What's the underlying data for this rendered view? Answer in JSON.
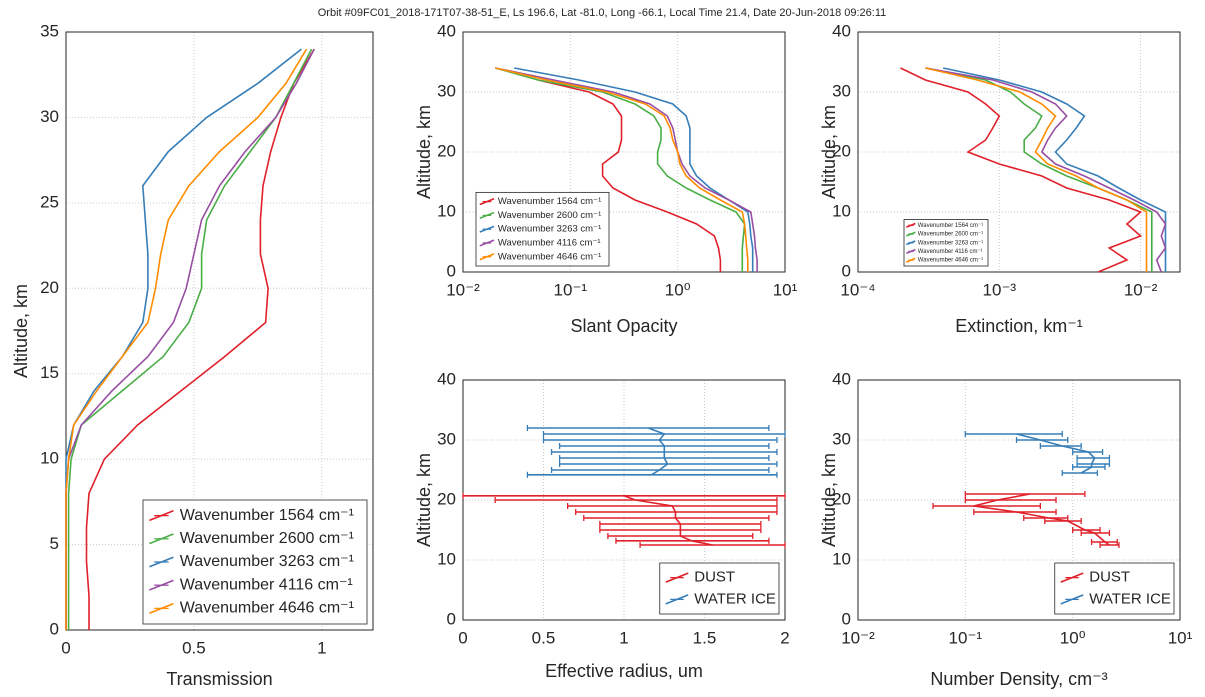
{
  "title": "Orbit #09FC01_2018-171T07-38-51_E, Ls 196.6, Lat -81.0, Long -66.1, Local Time 21.4, Date 20-Jun-2018 09:26:11",
  "chart_data": [
    {
      "type": "line",
      "xlabel": "Transmission",
      "ylabel": "Altitude, km",
      "xscale": "linear",
      "xlim": [
        0,
        1.2
      ],
      "xticks": [
        0,
        0.5,
        1
      ],
      "ylim": [
        0,
        35
      ],
      "yticks": [
        0,
        5,
        10,
        15,
        20,
        25,
        30,
        35
      ],
      "grid": true,
      "legend": "southeast",
      "altitude": [
        0,
        2,
        4,
        6,
        8,
        10,
        12,
        14,
        16,
        18,
        20,
        22,
        24,
        26,
        28,
        30,
        32,
        34
      ],
      "series": [
        {
          "name": "Wavenumber 1564 cm⁻¹",
          "color": "#e0202a",
          "values": [
            0.09,
            0.09,
            0.08,
            0.08,
            0.09,
            0.15,
            0.28,
            0.45,
            0.62,
            0.78,
            0.79,
            0.76,
            0.76,
            0.77,
            0.8,
            0.84,
            0.89,
            0.97
          ]
        },
        {
          "name": "Wavenumber 2600 cm⁻¹",
          "color": "#4aae48",
          "values": [
            0.01,
            0.01,
            0.01,
            0.01,
            0.01,
            0.02,
            0.06,
            0.22,
            0.38,
            0.48,
            0.53,
            0.53,
            0.55,
            0.62,
            0.72,
            0.82,
            0.89,
            0.96
          ]
        },
        {
          "name": "Wavenumber 3263 cm⁻¹",
          "color": "#377eb8",
          "values": [
            0,
            0,
            0,
            0,
            0,
            0,
            0.03,
            0.11,
            0.22,
            0.3,
            0.32,
            0.32,
            0.31,
            0.3,
            0.4,
            0.55,
            0.75,
            0.92
          ]
        },
        {
          "name": "Wavenumber 4116 cm⁻¹",
          "color": "#984ea3",
          "values": [
            0,
            0,
            0,
            0,
            0,
            0.01,
            0.06,
            0.18,
            0.32,
            0.42,
            0.47,
            0.5,
            0.53,
            0.6,
            0.7,
            0.82,
            0.9,
            0.97
          ]
        },
        {
          "name": "Wavenumber 4646 cm⁻¹",
          "color": "#ff8c00",
          "values": [
            0,
            0,
            0,
            0,
            0,
            0.01,
            0.03,
            0.12,
            0.22,
            0.32,
            0.35,
            0.37,
            0.4,
            0.48,
            0.6,
            0.75,
            0.86,
            0.94
          ]
        }
      ]
    },
    {
      "type": "line",
      "xlabel": "Slant Opacity",
      "ylabel": "Altitude, km",
      "xscale": "log",
      "xlim": [
        0.01,
        10
      ],
      "xticks": [
        {
          "value": 0.01,
          "label": "10⁻²"
        },
        {
          "value": 0.1,
          "label": "10⁻¹"
        },
        {
          "value": 1,
          "label": "10⁰"
        },
        {
          "value": 10,
          "label": "10¹"
        }
      ],
      "ylim": [
        0,
        40
      ],
      "yticks": [
        0,
        10,
        20,
        30,
        40
      ],
      "grid": true,
      "legend": "southwest",
      "altitude": [
        0,
        2,
        4,
        6,
        8,
        10,
        12,
        14,
        16,
        18,
        20,
        22,
        24,
        26,
        28,
        30,
        32,
        34
      ],
      "series": [
        {
          "name": "Wavenumber 1564 cm⁻¹",
          "color": "#e0202a",
          "values": [
            2.5,
            2.5,
            2.4,
            2.2,
            1.5,
            0.8,
            0.4,
            0.25,
            0.2,
            0.2,
            0.28,
            0.3,
            0.3,
            0.3,
            0.25,
            0.15,
            0.05,
            null
          ]
        },
        {
          "name": "Wavenumber 2600 cm⁻¹",
          "color": "#4aae48",
          "values": [
            4,
            4,
            4,
            4.1,
            4.2,
            3.5,
            2,
            1.2,
            0.8,
            0.65,
            0.65,
            0.7,
            0.7,
            0.6,
            0.4,
            0.2,
            0.05,
            0.02
          ]
        },
        {
          "name": "Wavenumber 3263 cm⁻¹",
          "color": "#377eb8",
          "values": [
            5,
            5,
            5,
            4.8,
            4.7,
            4.5,
            3,
            2,
            1.5,
            1.3,
            1.3,
            1.3,
            1.3,
            1.2,
            0.9,
            0.4,
            0.12,
            0.03
          ]
        },
        {
          "name": "Wavenumber 4116 cm⁻¹",
          "color": "#984ea3",
          "values": [
            5.5,
            5.5,
            5.3,
            5.2,
            5,
            4.8,
            3,
            1.8,
            1.3,
            1.1,
            1,
            0.95,
            0.9,
            0.8,
            0.55,
            0.25,
            0.07,
            0.02
          ]
        },
        {
          "name": "Wavenumber 4646 cm⁻¹",
          "color": "#ff8c00",
          "values": [
            4.5,
            4.5,
            4.4,
            4.3,
            4.2,
            4,
            2.5,
            1.6,
            1.2,
            1.05,
            1,
            0.9,
            0.85,
            0.75,
            0.5,
            0.22,
            0.06,
            0.02
          ]
        }
      ]
    },
    {
      "type": "line",
      "xlabel": "Extinction, km⁻¹",
      "ylabel": "Altitude, km",
      "xscale": "log",
      "xlim": [
        0.0001,
        0.019
      ],
      "xticks": [
        {
          "value": 0.0001,
          "label": "10⁻⁴"
        },
        {
          "value": 0.001,
          "label": "10⁻³"
        },
        {
          "value": 0.01,
          "label": "10⁻²"
        }
      ],
      "ylim": [
        0,
        40
      ],
      "yticks": [
        0,
        10,
        20,
        30,
        40
      ],
      "grid": true,
      "legend": "southwest",
      "altitude": [
        0,
        2,
        4,
        6,
        8,
        10,
        12,
        14,
        16,
        18,
        20,
        22,
        24,
        26,
        28,
        30,
        32,
        34
      ],
      "series": [
        {
          "name": "Wavenumber 1564 cm⁻¹",
          "color": "#e0202a",
          "values": [
            0.005,
            0.008,
            0.006,
            0.01,
            0.008,
            0.01,
            0.006,
            0.003,
            0.002,
            0.001,
            0.0006,
            0.0008,
            0.0009,
            0.001,
            0.0008,
            0.0006,
            0.0003,
            0.0002
          ]
        },
        {
          "name": "Wavenumber 2600 cm⁻¹",
          "color": "#4aae48",
          "values": [
            0.012,
            0.012,
            0.012,
            0.012,
            0.012,
            0.012,
            0.008,
            0.005,
            0.003,
            0.002,
            0.0015,
            0.0015,
            0.0018,
            0.002,
            0.0015,
            0.0012,
            0.0008,
            0.0003
          ]
        },
        {
          "name": "Wavenumber 3263 cm⁻¹",
          "color": "#377eb8",
          "values": [
            0.015,
            0.015,
            0.015,
            0.015,
            0.015,
            0.015,
            0.01,
            0.007,
            0.005,
            0.003,
            0.0025,
            0.003,
            0.0035,
            0.004,
            0.003,
            0.002,
            0.001,
            0.0004
          ]
        },
        {
          "name": "Wavenumber 4116 cm⁻¹",
          "color": "#984ea3",
          "values": [
            0.014,
            0.013,
            0.015,
            0.014,
            0.015,
            0.013,
            0.009,
            0.006,
            0.004,
            0.0025,
            0.002,
            0.0022,
            0.0025,
            0.003,
            0.0025,
            0.0017,
            0.0009,
            0.0003
          ]
        },
        {
          "name": "Wavenumber 4646 cm⁻¹",
          "color": "#ff8c00",
          "values": [
            0.011,
            0.011,
            0.011,
            0.011,
            0.011,
            0.011,
            0.008,
            0.005,
            0.0035,
            0.0022,
            0.0018,
            0.002,
            0.0022,
            0.0025,
            0.002,
            0.0014,
            0.0007,
            0.0003
          ]
        }
      ]
    },
    {
      "type": "errorbar",
      "xlabel": "Effective radius, um",
      "ylabel": "Altitude, km",
      "xscale": "linear",
      "xlim": [
        0,
        2
      ],
      "xticks": [
        0,
        0.5,
        1,
        1.5,
        2
      ],
      "ylim": [
        0,
        40
      ],
      "yticks": [
        0,
        10,
        20,
        30,
        40
      ],
      "grid": true,
      "legend": "southeast",
      "series": [
        {
          "name": "DUST",
          "color": "#e0202a",
          "altitude": [
            12.5,
            13.2,
            14,
            15,
            16,
            17,
            18,
            19,
            20,
            20.7
          ],
          "values": [
            1.55,
            1.42,
            1.35,
            1.35,
            1.35,
            1.32,
            1.32,
            1.3,
            1.07,
            1.0
          ],
          "lower": [
            1.1,
            0.95,
            0.9,
            0.85,
            0.85,
            0.75,
            0.7,
            0.65,
            0.2,
            0
          ],
          "upper": [
            2,
            1.9,
            1.8,
            1.85,
            1.85,
            1.9,
            1.95,
            1.95,
            1.95,
            2
          ]
        },
        {
          "name": "WATER ICE",
          "color": "#377eb8",
          "altitude": [
            24.2,
            25,
            26,
            27,
            28,
            29,
            30,
            31,
            32
          ],
          "values": [
            1.17,
            1.22,
            1.27,
            1.25,
            1.25,
            1.25,
            1.22,
            1.25,
            1.15
          ],
          "lower": [
            0.4,
            0.55,
            0.6,
            0.6,
            0.55,
            0.6,
            0.5,
            0.5,
            0.4
          ],
          "upper": [
            1.95,
            1.9,
            1.95,
            1.9,
            1.95,
            1.9,
            1.95,
            2,
            1.9
          ]
        }
      ]
    },
    {
      "type": "errorbar",
      "xlabel": "Number Density, cm⁻³",
      "ylabel": "Altitude, km",
      "xscale": "log",
      "xlim": [
        0.01,
        10
      ],
      "xticks": [
        {
          "value": 0.01,
          "label": "10⁻²"
        },
        {
          "value": 0.1,
          "label": "10⁻¹"
        },
        {
          "value": 1,
          "label": "10⁰"
        },
        {
          "value": 10,
          "label": "10¹"
        }
      ],
      "ylim": [
        0,
        40
      ],
      "yticks": [
        0,
        10,
        20,
        30,
        40
      ],
      "grid": true,
      "legend": "southeast",
      "series": [
        {
          "name": "DUST",
          "color": "#e0202a",
          "altitude": [
            12.5,
            13,
            14.5,
            15,
            16.5,
            17,
            18,
            19,
            20,
            21
          ],
          "values": [
            2.2,
            2.0,
            1.6,
            1.3,
            0.9,
            0.6,
            0.3,
            0.12,
            0.2,
            0.4
          ],
          "lower": [
            1.8,
            1.5,
            1.2,
            1.0,
            0.55,
            0.35,
            0.12,
            0.05,
            0.1,
            0.1
          ],
          "upper": [
            2.7,
            2.6,
            2.2,
            1.8,
            1.2,
            0.9,
            0.7,
            0.5,
            0.7,
            1.3
          ]
        },
        {
          "name": "WATER ICE",
          "color": "#377eb8",
          "altitude": [
            24.5,
            25.5,
            26,
            27,
            28,
            29,
            30,
            31
          ],
          "values": [
            1.2,
            1.5,
            1.5,
            1.6,
            1.4,
            0.8,
            0.5,
            0.3
          ],
          "lower": [
            0.8,
            1.0,
            1.1,
            1.1,
            1.0,
            0.5,
            0.3,
            0.1
          ],
          "upper": [
            1.7,
            2.0,
            2.2,
            2.2,
            1.9,
            1.2,
            0.9,
            0.8
          ]
        }
      ]
    }
  ]
}
